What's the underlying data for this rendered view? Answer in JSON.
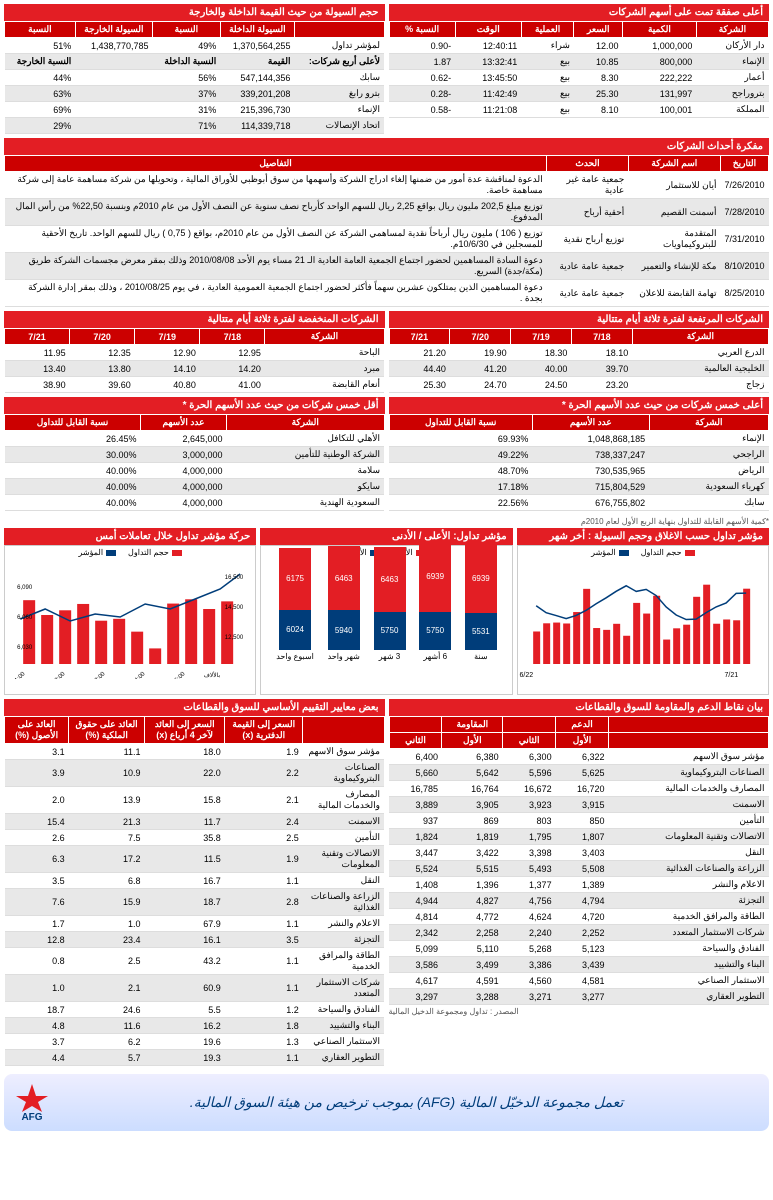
{
  "topDeals": {
    "title": "أعلى صفقة تمت على أسهم الشركات",
    "cols": [
      "الشركة",
      "الكمية",
      "السعر",
      "العملية",
      "الوقت",
      "النسبة %"
    ],
    "rows": [
      [
        "دار الأركان",
        "1,000,000",
        "12.00",
        "شراء",
        "12:40:11",
        "-0.90"
      ],
      [
        "الإنماء",
        "800,000",
        "10.85",
        "بيع",
        "13:32:41",
        "1.87"
      ],
      [
        "أعمار",
        "222,222",
        "8.30",
        "بيع",
        "13:45:50",
        "-0.62"
      ],
      [
        "بتروراجح",
        "131,997",
        "25.30",
        "بيع",
        "11:42:49",
        "-0.28"
      ],
      [
        "المملكة",
        "100,001",
        "8.10",
        "بيع",
        "11:21:08",
        "-0.58"
      ]
    ]
  },
  "liquidity": {
    "title": "حجم السيولة من حيث القيمة الداخلة والخارجة",
    "cols": [
      "",
      "السيولة الداخلة",
      "النسبة",
      "السيولة الخارجة",
      "النسبة"
    ],
    "row1": [
      "لمؤشر تداول",
      "1,370,564,255",
      "49%",
      "1,438,770,785",
      "51%"
    ],
    "sub": [
      "لأعلى أربع شركات:",
      "القيمة",
      "النسبة الداخلة",
      "",
      "النسبة الخارجة"
    ],
    "rows": [
      [
        "سابك",
        "547,144,356",
        "56%",
        "",
        "44%"
      ],
      [
        "بترو رابغ",
        "339,201,208",
        "37%",
        "",
        "63%"
      ],
      [
        "الإنماء",
        "215,396,730",
        "31%",
        "",
        "69%"
      ],
      [
        "اتحاد الإتصالات",
        "114,339,718",
        "71%",
        "",
        "29%"
      ]
    ]
  },
  "events": {
    "title": "مفكرة أحداث الشركات",
    "cols": [
      "التاريخ",
      "اسم الشركة",
      "الحدث",
      "التفاصيل"
    ],
    "rows": [
      [
        "7/26/2010",
        "أيان للاستثمار",
        "جمعية عامة غير عادية",
        "الدعوة لمناقشة عدة أمور من ضمنها إلغاء ادراج الشركة وأسهمها من سوق أبوظبي للأوراق المالية ، وتحويلها من شركة مساهمة عامة إلى شركة مساهمة خاصة."
      ],
      [
        "7/28/2010",
        "أسمنت القصيم",
        "أحقية أرباح",
        "توزيع مبلغ 202,5 مليون ريال بواقع 2,25 ريال للسهم الواحد كأرباح نصف سنوية عن النصف الأول من عام 2010م وبنسبة 22,50% من رأس المال المدفوع."
      ],
      [
        "7/31/2010",
        "المتقدمة للبتروكيماويات",
        "توزيع أرباح نقدية",
        "توزيع ( 106 ) مليون ريال أرباحاً نقدية لمساهمي الشركة عن النصف الأول من عام 2010م، بواقع ( 0,75 ) ريال للسهم الواحد. تاريخ الأحقية للمسجلين في 10/6/30م."
      ],
      [
        "8/10/2010",
        "مكة للإنشاء والتعمير",
        "جمعية عامة عادية",
        "دعوة السادة المساهمين لحضور اجتماع الجمعية العامة العادية الـ 21 مساء يوم الأحد 2010/08/08 وذلك بمقر معرض مجسمات الشركة طريق (مكة/جدة) السريع."
      ],
      [
        "8/25/2010",
        "تهامة القابضة للاعلان",
        "جمعية عامة عادية",
        "دعوة المساهمين الذين يمتلكون عشرين سهماً فأكثر لحضور اجتماع الجمعية العمومية العادية ، في يوم 2010/08/25 ، وذلك بمقر إدارة الشركة بجدة ."
      ]
    ]
  },
  "up3": {
    "title": "الشركات المرتفعة لفترة ثلاثة أيام متتالية",
    "cols": [
      "الشركة",
      "7/18",
      "7/19",
      "7/20",
      "7/21"
    ],
    "rows": [
      [
        "الدرع العربي",
        "18.10",
        "18.30",
        "19.90",
        "21.20"
      ],
      [
        "الخليجية العالمية",
        "39.70",
        "40.00",
        "41.20",
        "44.40"
      ],
      [
        "زجاج",
        "23.20",
        "24.50",
        "24.70",
        "25.30"
      ]
    ]
  },
  "down3": {
    "title": "الشركات المنخفضة لفترة ثلاثة أيام متتالية",
    "cols": [
      "الشركة",
      "7/18",
      "7/19",
      "7/20",
      "7/21"
    ],
    "rows": [
      [
        "الباحة",
        "12.95",
        "12.90",
        "12.35",
        "11.95"
      ],
      [
        "مبرد",
        "14.20",
        "14.10",
        "13.80",
        "13.40"
      ],
      [
        "أنعام القابضة",
        "41.00",
        "40.80",
        "39.60",
        "38.90"
      ]
    ]
  },
  "topFree": {
    "title": "أعلى خمس شركات من حيث عدد الأسهم الحرة *",
    "cols": [
      "الشركة",
      "عدد الأسهم",
      "نسبة القابل للتداول"
    ],
    "rows": [
      [
        "الإنماء",
        "1,048,868,185",
        "69.93%"
      ],
      [
        "الراجحي",
        "738,337,247",
        "49.22%"
      ],
      [
        "الرياض",
        "730,535,965",
        "48.70%"
      ],
      [
        "كهرباء السعودية",
        "715,804,529",
        "17.18%"
      ],
      [
        "سابك",
        "676,755,802",
        "22.56%"
      ]
    ]
  },
  "lowFree": {
    "title": "أقل خمس شركات من حيث عدد الأسهم الحرة *",
    "cols": [
      "الشركة",
      "عدد الأسهم",
      "نسبة القابل للتداول"
    ],
    "rows": [
      [
        "الأهلي للتكافل",
        "2,645,000",
        "26.45%"
      ],
      [
        "الشركة الوطنية للتأمين",
        "3,000,000",
        "30.00%"
      ],
      [
        "سلامة",
        "4,000,000",
        "40.00%"
      ],
      [
        "سايكو",
        "4,000,000",
        "40.00%"
      ],
      [
        "السعودية الهندية",
        "4,000,000",
        "40.00%"
      ]
    ]
  },
  "freeNote": "*كمية الأسهم القابلة للتداول بنهاية الربع الأول لعام 2010م",
  "chart1": {
    "title": "مؤشر تداول حسب الاغلاق وحجم السيولة : أخر شهر",
    "legend": [
      "حجم التداول",
      "المؤشر"
    ],
    "colors": [
      "#e31e24",
      "#003d7a"
    ],
    "xStart": "6/22",
    "xEnd": "7/21"
  },
  "chart2": {
    "title": "مؤشر تداول: الأعلى / الأدنى",
    "legend": [
      "الأعلى",
      "الأدنى"
    ],
    "colors": [
      "#e31e24",
      "#003d7a"
    ],
    "bars": [
      {
        "label": "سنة",
        "high": 6939,
        "low": 5531
      },
      {
        "label": "6 أشهر",
        "high": 6939,
        "low": 5750
      },
      {
        "label": "3 شهر",
        "high": 6463,
        "low": 5750
      },
      {
        "label": "شهر واحد",
        "high": 6463,
        "low": 5940
      },
      {
        "label": "اسبوع واحد",
        "high": 6175,
        "low": 6024
      }
    ]
  },
  "chart3": {
    "title": "حركة مؤشر تداول خلال تعاملات أمس",
    "legend": [
      "حجم التداول",
      "المؤشر"
    ],
    "colors": [
      "#e31e24",
      "#003d7a"
    ]
  },
  "support": {
    "title": "بيان نقاط الدعم والمقاومة للسوق والقطاعات",
    "cols1": [
      "",
      "الدعم",
      "",
      "المقاومة",
      ""
    ],
    "cols2": [
      "",
      "الأول",
      "الثاني",
      "الأول",
      "الثاني"
    ],
    "rows": [
      [
        "مؤشر سوق الاسهم",
        "6,322",
        "6,300",
        "6,380",
        "6,400"
      ],
      [
        "الصناعات البتروكيماوية",
        "5,625",
        "5,596",
        "5,642",
        "5,660"
      ],
      [
        "المصارف والخدمات المالية",
        "16,720",
        "16,672",
        "16,764",
        "16,785"
      ],
      [
        "الاسمنت",
        "3,915",
        "3,923",
        "3,905",
        "3,889"
      ],
      [
        "التأمين",
        "850",
        "803",
        "869",
        "937"
      ],
      [
        "الاتصالات وتقنية المعلومات",
        "1,807",
        "1,795",
        "1,819",
        "1,824"
      ],
      [
        "النقل",
        "3,403",
        "3,398",
        "3,422",
        "3,447"
      ],
      [
        "الزراعة والصناعات الغذائية",
        "5,508",
        "5,493",
        "5,515",
        "5,524"
      ],
      [
        "الاعلام والنشر",
        "1,389",
        "1,377",
        "1,396",
        "1,408"
      ],
      [
        "التجزئة",
        "4,794",
        "4,756",
        "4,827",
        "4,944"
      ],
      [
        "الطاقة والمرافق الخدمية",
        "4,720",
        "4,624",
        "4,772",
        "4,814"
      ],
      [
        "شركات الاستثمار المتعدد",
        "2,252",
        "2,240",
        "2,258",
        "2,342"
      ],
      [
        "الفنادق والسياحة",
        "5,123",
        "5,268",
        "5,110",
        "5,099"
      ],
      [
        "البناء والتشييد",
        "3,439",
        "3,386",
        "3,499",
        "3,586"
      ],
      [
        "الاستثمار الصناعي",
        "4,581",
        "4,560",
        "4,591",
        "4,617"
      ],
      [
        "التطوير العقاري",
        "3,277",
        "3,271",
        "3,288",
        "3,297"
      ]
    ],
    "source": "المصدر : تداول ومجموعة الدخيل المالية"
  },
  "valuation": {
    "title": "بعض معايير التقييم الأساسي للسوق والقطاعات",
    "cols": [
      "",
      "السعر إلى القيمة الدفترية (x)",
      "السعر إلى العائد لآخر 4 أرباع (x)",
      "العائد على حقوق الملكية (%)",
      "العائد على الأصول (%)"
    ],
    "rows": [
      [
        "مؤشر سوق الاسهم",
        "1.9",
        "18.0",
        "11.1",
        "3.1"
      ],
      [
        "الصناعات البتروكيماوية",
        "2.2",
        "22.0",
        "10.9",
        "3.9"
      ],
      [
        "المصارف والخدمات المالية",
        "2.1",
        "15.8",
        "13.9",
        "2.0"
      ],
      [
        "الاسمنت",
        "2.4",
        "11.7",
        "21.3",
        "15.4"
      ],
      [
        "التأمين",
        "2.5",
        "35.8",
        "7.5",
        "2.6"
      ],
      [
        "الاتصالات وتقنية المعلومات",
        "1.9",
        "11.5",
        "17.2",
        "6.3"
      ],
      [
        "النقل",
        "1.1",
        "16.7",
        "6.8",
        "3.5"
      ],
      [
        "الزراعة والصناعات الغذائية",
        "2.8",
        "18.7",
        "15.9",
        "7.6"
      ],
      [
        "الاعلام والنشر",
        "1.1",
        "67.9",
        "1.0",
        "1.7"
      ],
      [
        "التجزئة",
        "3.5",
        "16.1",
        "23.4",
        "12.8"
      ],
      [
        "الطاقة والمرافق الخدمية",
        "1.1",
        "43.2",
        "2.5",
        "0.8"
      ],
      [
        "شركات الاستثمار المتعدد",
        "1.1",
        "60.9",
        "2.1",
        "1.0"
      ],
      [
        "الفنادق والسياحة",
        "1.2",
        "5.5",
        "24.6",
        "18.7"
      ],
      [
        "البناء والتشييد",
        "1.8",
        "16.2",
        "11.6",
        "4.8"
      ],
      [
        "الاستثمار الصناعي",
        "1.3",
        "19.6",
        "6.2",
        "3.7"
      ],
      [
        "التطوير العقاري",
        "1.1",
        "19.3",
        "5.7",
        "4.4"
      ]
    ]
  },
  "footer": "تعمل مجموعة الدخيّل المالية (AFG) بموجب ترخيص من هيئة السوق المالية.",
  "logoText": "AFG"
}
